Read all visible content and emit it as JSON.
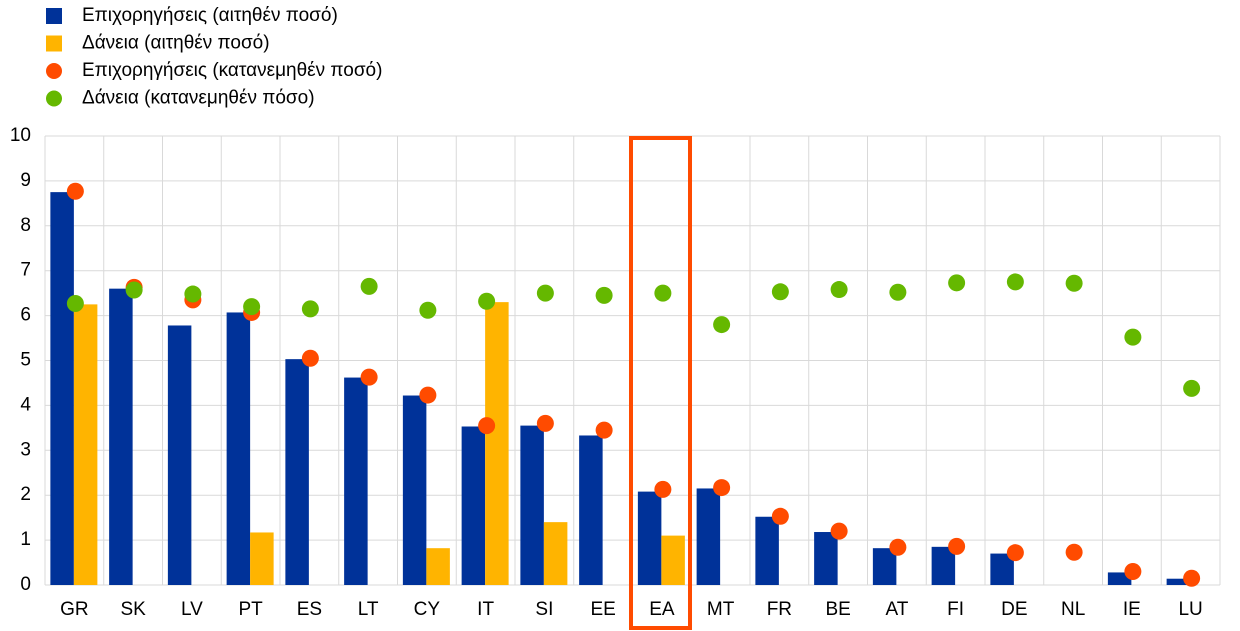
{
  "chart_data": {
    "type": "bar",
    "categories": [
      "GR",
      "SK",
      "LV",
      "PT",
      "ES",
      "LT",
      "CY",
      "IT",
      "SI",
      "EE",
      "EA",
      "MT",
      "FR",
      "BE",
      "AT",
      "FI",
      "DE",
      "NL",
      "IE",
      "LU"
    ],
    "series": [
      {
        "name": "Επιχορηγήσεις (αιτηθέν ποσό)",
        "color": "#003299",
        "type": "bar",
        "values": [
          8.75,
          6.6,
          5.78,
          6.07,
          5.03,
          4.62,
          4.22,
          3.53,
          3.55,
          3.33,
          2.08,
          2.15,
          1.52,
          1.18,
          0.82,
          0.85,
          0.7,
          null,
          0.28,
          0.14
        ]
      },
      {
        "name": "Δάνεια (αιτηθέν ποσό)",
        "color": "#ffb400",
        "type": "bar",
        "values": [
          6.25,
          null,
          null,
          1.17,
          null,
          null,
          0.82,
          6.3,
          1.4,
          null,
          1.1,
          null,
          null,
          null,
          null,
          null,
          null,
          null,
          null,
          null
        ]
      },
      {
        "name": "Επιχορηγήσεις (κατανεμηθέν ποσό)",
        "color": "#ff4b00",
        "type": "scatter",
        "values": [
          8.77,
          6.63,
          6.35,
          6.07,
          5.05,
          4.63,
          4.23,
          3.55,
          3.6,
          3.45,
          2.13,
          2.17,
          1.53,
          1.2,
          0.84,
          0.86,
          0.72,
          0.73,
          0.3,
          0.15
        ]
      },
      {
        "name": "Δάνεια (κατανεμηθέν πόσο)",
        "color": "#65b800",
        "type": "scatter",
        "values": [
          6.27,
          6.57,
          6.48,
          6.2,
          6.15,
          6.65,
          6.12,
          6.32,
          6.5,
          6.45,
          6.5,
          5.8,
          6.53,
          6.58,
          6.52,
          6.73,
          6.75,
          6.72,
          5.52,
          4.38
        ]
      }
    ],
    "ylim": [
      0,
      10
    ],
    "yticks": [
      0,
      1,
      2,
      3,
      4,
      5,
      6,
      7,
      8,
      9,
      10
    ],
    "grid": true
  }
}
